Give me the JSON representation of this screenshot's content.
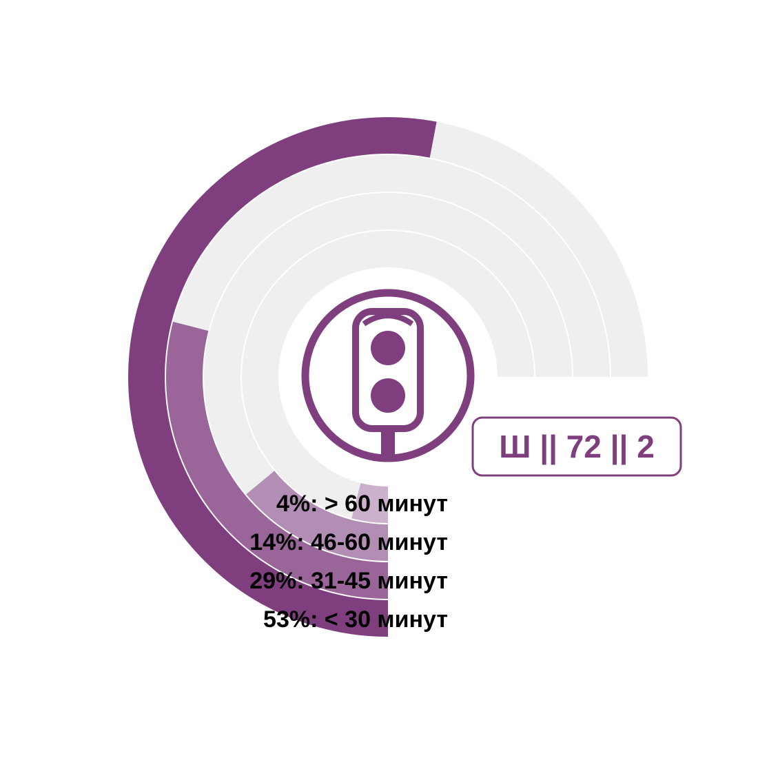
{
  "chart_data": {
    "type": "radial-bar",
    "track_color": "#efefef",
    "series": [
      {
        "value": 53,
        "label": "53%: < 30 минут",
        "color": "#7f3f7e"
      },
      {
        "value": 29,
        "label": "29%: 31-45 минут",
        "color": "#9a6699"
      },
      {
        "value": 14,
        "label": "14%: 46-60 минут",
        "color": "#b28db4"
      },
      {
        "value": 4,
        "label": "4%: > 60 минут",
        "color": "#cbb1cc"
      }
    ],
    "max": 100,
    "track_extent_percent": 75
  },
  "badge": {
    "text": "Ш || 72 || 2",
    "color": "#7f3f7e"
  },
  "icon": {
    "name": "traffic-light-icon",
    "color": "#7f3f7e"
  }
}
